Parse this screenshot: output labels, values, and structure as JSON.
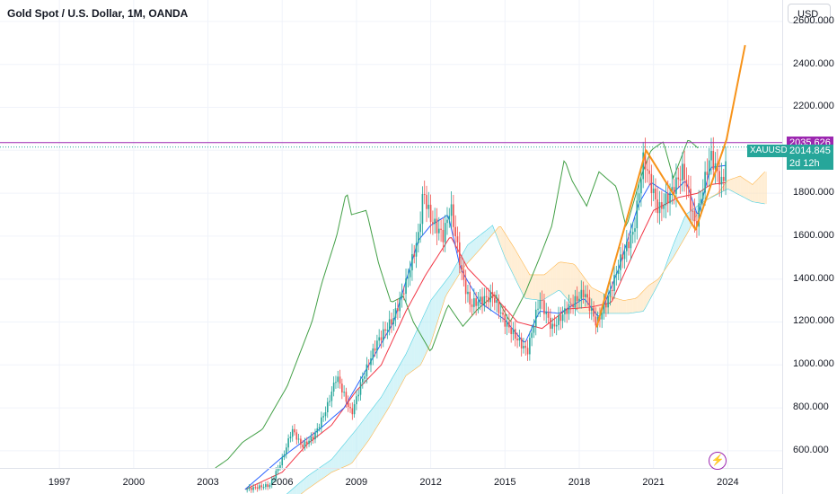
{
  "header": {
    "title": "Gold Spot / U.S. Dollar, 1M, OANDA"
  },
  "currency_button": "USD",
  "badges": {
    "resistance_label": "2035.626",
    "symbol": "XAUUSD",
    "last_price": "2014.845",
    "countdown": "2d 12h"
  },
  "icons": {
    "alert": "lightning-bolt-icon"
  },
  "colors": {
    "up": "#26a69a",
    "down": "#ef5350",
    "tenkan": "#2962ff",
    "kijun": "#f23645",
    "chikou": "#43a047",
    "span_a": "#4dd0e1",
    "span_b": "#ffb74d",
    "cloud_bull": "#b2ebf2",
    "cloud_bear": "#ffe0b2",
    "resistance": "#9c27b0",
    "pattern": "#f7931a",
    "last": "#26a69a"
  },
  "chart_data": {
    "type": "candlestick",
    "title": "Gold Spot / U.S. Dollar, 1M, OANDA",
    "ylabel": "USD",
    "y_ticks": [
      "2600.000",
      "2400.000",
      "2200.000",
      "1800.000",
      "1600.000",
      "1400.000",
      "1200.000",
      "1000.000",
      "800.000",
      "600.000"
    ],
    "x_ticks": [
      "1997",
      "2000",
      "2003",
      "2006",
      "2009",
      "2012",
      "2015",
      "2018",
      "2021",
      "2024"
    ],
    "ylim": [
      520,
      2700
    ],
    "xlim": [
      1994.6,
      2026.2
    ],
    "grid": true,
    "price_anchors": [
      [
        2004.5,
        420
      ],
      [
        2005.0,
        430
      ],
      [
        2005.5,
        440
      ],
      [
        2006.0,
        560
      ],
      [
        2006.4,
        700
      ],
      [
        2006.8,
        620
      ],
      [
        2007.3,
        670
      ],
      [
        2007.8,
        800
      ],
      [
        2008.2,
        950
      ],
      [
        2008.8,
        770
      ],
      [
        2009.2,
        920
      ],
      [
        2009.8,
        1100
      ],
      [
        2010.5,
        1220
      ],
      [
        2011.0,
        1380
      ],
      [
        2011.5,
        1600
      ],
      [
        2011.7,
        1810
      ],
      [
        2012.0,
        1680
      ],
      [
        2012.5,
        1600
      ],
      [
        2012.8,
        1740
      ],
      [
        2013.3,
        1400
      ],
      [
        2013.6,
        1280
      ],
      [
        2014.0,
        1300
      ],
      [
        2014.5,
        1320
      ],
      [
        2015.0,
        1200
      ],
      [
        2015.5,
        1120
      ],
      [
        2015.9,
        1060
      ],
      [
        2016.4,
        1310
      ],
      [
        2016.9,
        1170
      ],
      [
        2017.5,
        1260
      ],
      [
        2018.2,
        1340
      ],
      [
        2018.7,
        1190
      ],
      [
        2019.2,
        1320
      ],
      [
        2019.7,
        1500
      ],
      [
        2020.2,
        1620
      ],
      [
        2020.6,
        1970
      ],
      [
        2020.8,
        1880
      ],
      [
        2021.2,
        1720
      ],
      [
        2021.7,
        1800
      ],
      [
        2022.2,
        1910
      ],
      [
        2022.7,
        1640
      ],
      [
        2022.9,
        1770
      ],
      [
        2023.3,
        1980
      ],
      [
        2023.8,
        1830
      ],
      [
        2023.96,
        2015
      ]
    ],
    "tenkan_anchors": [
      [
        2004.5,
        420
      ],
      [
        2006.0,
        570
      ],
      [
        2007.5,
        700
      ],
      [
        2008.5,
        800
      ],
      [
        2009.5,
        1000
      ],
      [
        2010.5,
        1200
      ],
      [
        2011.5,
        1580
      ],
      [
        2012.0,
        1650
      ],
      [
        2012.7,
        1700
      ],
      [
        2013.2,
        1450
      ],
      [
        2014.0,
        1290
      ],
      [
        2015.0,
        1210
      ],
      [
        2015.8,
        1100
      ],
      [
        2016.4,
        1250
      ],
      [
        2017.2,
        1240
      ],
      [
        2018.2,
        1310
      ],
      [
        2018.8,
        1220
      ],
      [
        2019.6,
        1450
      ],
      [
        2020.4,
        1750
      ],
      [
        2020.9,
        1850
      ],
      [
        2021.7,
        1790
      ],
      [
        2022.3,
        1860
      ],
      [
        2022.8,
        1690
      ],
      [
        2023.3,
        1920
      ],
      [
        2023.96,
        1930
      ]
    ],
    "kijun_anchors": [
      [
        2004.5,
        420
      ],
      [
        2006.0,
        500
      ],
      [
        2007.0,
        630
      ],
      [
        2008.0,
        720
      ],
      [
        2009.0,
        880
      ],
      [
        2010.0,
        1000
      ],
      [
        2011.0,
        1250
      ],
      [
        2011.8,
        1420
      ],
      [
        2012.8,
        1600
      ],
      [
        2013.5,
        1450
      ],
      [
        2014.5,
        1330
      ],
      [
        2015.5,
        1200
      ],
      [
        2016.5,
        1170
      ],
      [
        2017.5,
        1260
      ],
      [
        2018.5,
        1270
      ],
      [
        2019.3,
        1290
      ],
      [
        2019.8,
        1420
      ],
      [
        2020.5,
        1600
      ],
      [
        2021.0,
        1720
      ],
      [
        2022.0,
        1780
      ],
      [
        2022.8,
        1800
      ],
      [
        2023.3,
        1840
      ],
      [
        2023.96,
        1850
      ]
    ],
    "chikou_anchors": [
      [
        2003.3,
        520
      ],
      [
        2003.8,
        560
      ],
      [
        2004.4,
        640
      ],
      [
        2005.2,
        700
      ],
      [
        2006.2,
        900
      ],
      [
        2007.2,
        1200
      ],
      [
        2007.6,
        1380
      ],
      [
        2008.2,
        1600
      ],
      [
        2008.6,
        1810
      ],
      [
        2008.8,
        1700
      ],
      [
        2009.4,
        1720
      ],
      [
        2009.9,
        1470
      ],
      [
        2010.4,
        1290
      ],
      [
        2010.9,
        1320
      ],
      [
        2011.3,
        1200
      ],
      [
        2012.0,
        1060
      ],
      [
        2012.7,
        1280
      ],
      [
        2013.3,
        1180
      ],
      [
        2013.9,
        1260
      ],
      [
        2014.6,
        1330
      ],
      [
        2015.2,
        1200
      ],
      [
        2015.8,
        1330
      ],
      [
        2016.4,
        1500
      ],
      [
        2016.9,
        1650
      ],
      [
        2017.4,
        1960
      ],
      [
        2017.7,
        1860
      ],
      [
        2018.3,
        1740
      ],
      [
        2018.8,
        1900
      ],
      [
        2019.5,
        1830
      ],
      [
        2019.9,
        1640
      ],
      [
        2020.5,
        1880
      ],
      [
        2020.9,
        2000
      ],
      [
        2021.4,
        2040
      ],
      [
        2021.8,
        1870
      ],
      [
        2022.4,
        2050
      ],
      [
        2022.8,
        2010
      ]
    ],
    "span_a_anchors": [
      [
        2006.0,
        380
      ],
      [
        2007.0,
        480
      ],
      [
        2008.0,
        560
      ],
      [
        2009.0,
        700
      ],
      [
        2010.0,
        850
      ],
      [
        2011.0,
        1050
      ],
      [
        2012.0,
        1300
      ],
      [
        2012.8,
        1420
      ],
      [
        2013.5,
        1560
      ],
      [
        2014.5,
        1650
      ],
      [
        2015.0,
        1500
      ],
      [
        2015.8,
        1310
      ],
      [
        2016.5,
        1300
      ],
      [
        2017.2,
        1350
      ],
      [
        2018.0,
        1240
      ],
      [
        2018.6,
        1240
      ],
      [
        2019.3,
        1240
      ],
      [
        2020.0,
        1240
      ],
      [
        2020.6,
        1250
      ],
      [
        2021.3,
        1400
      ],
      [
        2021.8,
        1560
      ],
      [
        2022.3,
        1700
      ],
      [
        2023.0,
        1760
      ],
      [
        2024.0,
        1820
      ],
      [
        2025.0,
        1760
      ],
      [
        2025.5,
        1750
      ]
    ],
    "span_b_anchors": [
      [
        2006.0,
        330
      ],
      [
        2007.0,
        420
      ],
      [
        2008.0,
        500
      ],
      [
        2008.8,
        540
      ],
      [
        2009.5,
        650
      ],
      [
        2010.3,
        800
      ],
      [
        2011.0,
        950
      ],
      [
        2011.6,
        1000
      ],
      [
        2012.0,
        1100
      ],
      [
        2012.6,
        1320
      ],
      [
        2013.3,
        1450
      ],
      [
        2014.0,
        1540
      ],
      [
        2014.8,
        1650
      ],
      [
        2015.4,
        1540
      ],
      [
        2016.0,
        1420
      ],
      [
        2016.6,
        1420
      ],
      [
        2017.2,
        1480
      ],
      [
        2017.8,
        1470
      ],
      [
        2018.5,
        1360
      ],
      [
        2019.2,
        1320
      ],
      [
        2019.8,
        1300
      ],
      [
        2020.3,
        1310
      ],
      [
        2020.8,
        1370
      ],
      [
        2021.2,
        1400
      ],
      [
        2021.8,
        1500
      ],
      [
        2022.4,
        1620
      ],
      [
        2023.0,
        1760
      ],
      [
        2023.6,
        1800
      ],
      [
        2024.0,
        1860
      ],
      [
        2024.5,
        1880
      ],
      [
        2025.0,
        1840
      ],
      [
        2025.5,
        1900
      ]
    ],
    "pattern_line": [
      [
        2018.7,
        1175
      ],
      [
        2020.7,
        2000
      ],
      [
        2022.7,
        1630
      ],
      [
        2023.95,
        2050
      ],
      [
        2024.7,
        2490
      ]
    ],
    "resistance_level": 2035.626,
    "last_price": 2014.845
  }
}
